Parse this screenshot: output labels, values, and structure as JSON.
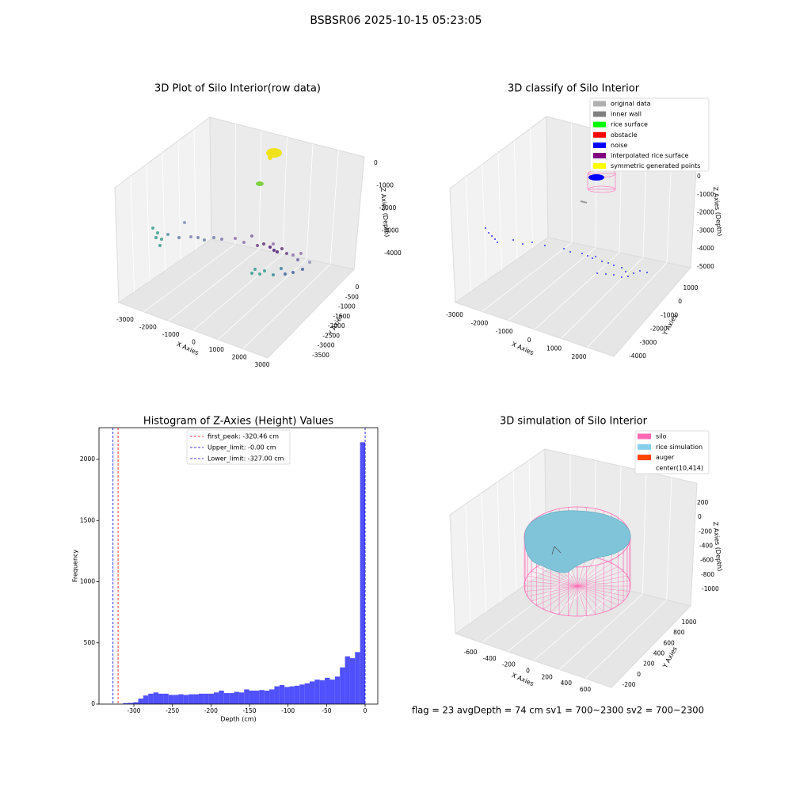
{
  "title": "BSBSR06 2025-10-15 05:23:05",
  "status_text": "flag = 23  avgDepth = 74 cm    sv1 = 700~2300  sv2 = 700~2300",
  "chart_data": [
    {
      "type": "scatter3d",
      "title": "3D Plot of Silo Interior(row data)",
      "xlabel": "X Axies",
      "ylabel": "Y Axies",
      "zlabel": "Z Axies (Depth)",
      "xticks": [
        -3000,
        -2000,
        -1000,
        0,
        1000,
        2000,
        3000
      ],
      "yticks": [
        0,
        -500,
        -1000,
        -1500,
        -2000,
        -2500,
        -3000,
        -3500
      ],
      "zticks": [
        0,
        -1000,
        -2000,
        -3000,
        -4000
      ]
    },
    {
      "type": "scatter3d",
      "title": "3D classify of Silo Interior",
      "xlabel": "X Axies",
      "ylabel": "Y Axies",
      "zlabel": "Z Axies (Depth)",
      "xticks": [
        -3000,
        -2000,
        -1000,
        0,
        1000,
        2000
      ],
      "yticks": [
        1000,
        0,
        -1000,
        -2000,
        -3000,
        -4000
      ],
      "zticks": [
        0,
        -1000,
        -2000,
        -3000,
        -4000,
        -5000
      ],
      "series": [
        {
          "name": "original data",
          "color": "#b0b0b0"
        },
        {
          "name": "inner wall",
          "color": "#808080"
        },
        {
          "name": "rice surface",
          "color": "#00ff00"
        },
        {
          "name": "obstacle",
          "color": "#ff0000"
        },
        {
          "name": "noise",
          "color": "#0000ff"
        },
        {
          "name": "interpolated rice surface",
          "color": "#800080"
        },
        {
          "name": "symmetric generated points",
          "color": "#ffff00"
        }
      ]
    },
    {
      "type": "histogram",
      "title": "Histogram of Z-Axies (Height) Values",
      "xlabel": "Depth (cm)",
      "ylabel": "Frequency",
      "color": "#5050ff",
      "bins": [
        -327,
        -320.46,
        -313.92,
        -307.38,
        -300.84,
        -294.3,
        -287.76,
        -281.22,
        -274.68,
        -268.14,
        -261.6,
        -255.06,
        -248.52,
        -241.98,
        -235.44,
        -228.9,
        -222.36,
        -215.82,
        -209.28,
        -202.74,
        -196.2,
        -189.66,
        -183.12,
        -176.58,
        -170.04,
        -163.5,
        -156.96,
        -150.42,
        -143.88,
        -137.34,
        -130.8,
        -124.26,
        -117.72,
        -111.18,
        -104.64,
        -98.1,
        -91.56,
        -85.02,
        -78.48,
        -71.94,
        -65.4,
        -58.86,
        -52.32,
        -45.78,
        -39.24,
        -32.7,
        -26.16,
        -19.62,
        -13.08,
        -6.54,
        0
      ],
      "values": [
        0,
        0,
        8,
        10,
        15,
        45,
        70,
        85,
        95,
        85,
        85,
        75,
        75,
        80,
        75,
        80,
        80,
        85,
        85,
        85,
        95,
        110,
        90,
        90,
        100,
        95,
        120,
        110,
        110,
        115,
        110,
        120,
        145,
        155,
        140,
        145,
        150,
        160,
        170,
        185,
        200,
        195,
        215,
        200,
        225,
        300,
        390,
        375,
        425,
        2140
      ],
      "xlim": [
        -345.2,
        16.4
      ],
      "ylim": [
        0,
        2259
      ],
      "xticks": [
        -300,
        -250,
        -200,
        -150,
        -100,
        -50,
        0
      ],
      "yticks": [
        0,
        500,
        1000,
        1500,
        2000
      ],
      "lines": [
        {
          "name": "first_peak: -320.46 cm",
          "value": -320.46,
          "color": "#ff0000"
        },
        {
          "name": "Upper_limit: -0.00 cm",
          "value": 0,
          "color": "#0000cc"
        },
        {
          "name": "Lower_limit: -327.00 cm",
          "value": -327,
          "color": "#0000cc"
        }
      ]
    },
    {
      "type": "surface3d",
      "title": "3D simulation of Silo Interior",
      "xlabel": "X Axies",
      "ylabel": "Y Axies",
      "zlabel": "Z Axies (Depth)",
      "xticks": [
        -600,
        -400,
        -200,
        0,
        200,
        400,
        600
      ],
      "yticks": [
        -200,
        0,
        200,
        400,
        600,
        800,
        1000
      ],
      "zticks": [
        200,
        0,
        -200,
        -400,
        -600,
        -800,
        -1000
      ],
      "series": [
        {
          "name": "silo",
          "color": "#ff69b4"
        },
        {
          "name": "rice simulation",
          "color": "#87ceeb"
        },
        {
          "name": "auger",
          "color": "#ff4500"
        },
        {
          "name": "center(10,414)",
          "color": "#ffffff"
        }
      ]
    }
  ]
}
